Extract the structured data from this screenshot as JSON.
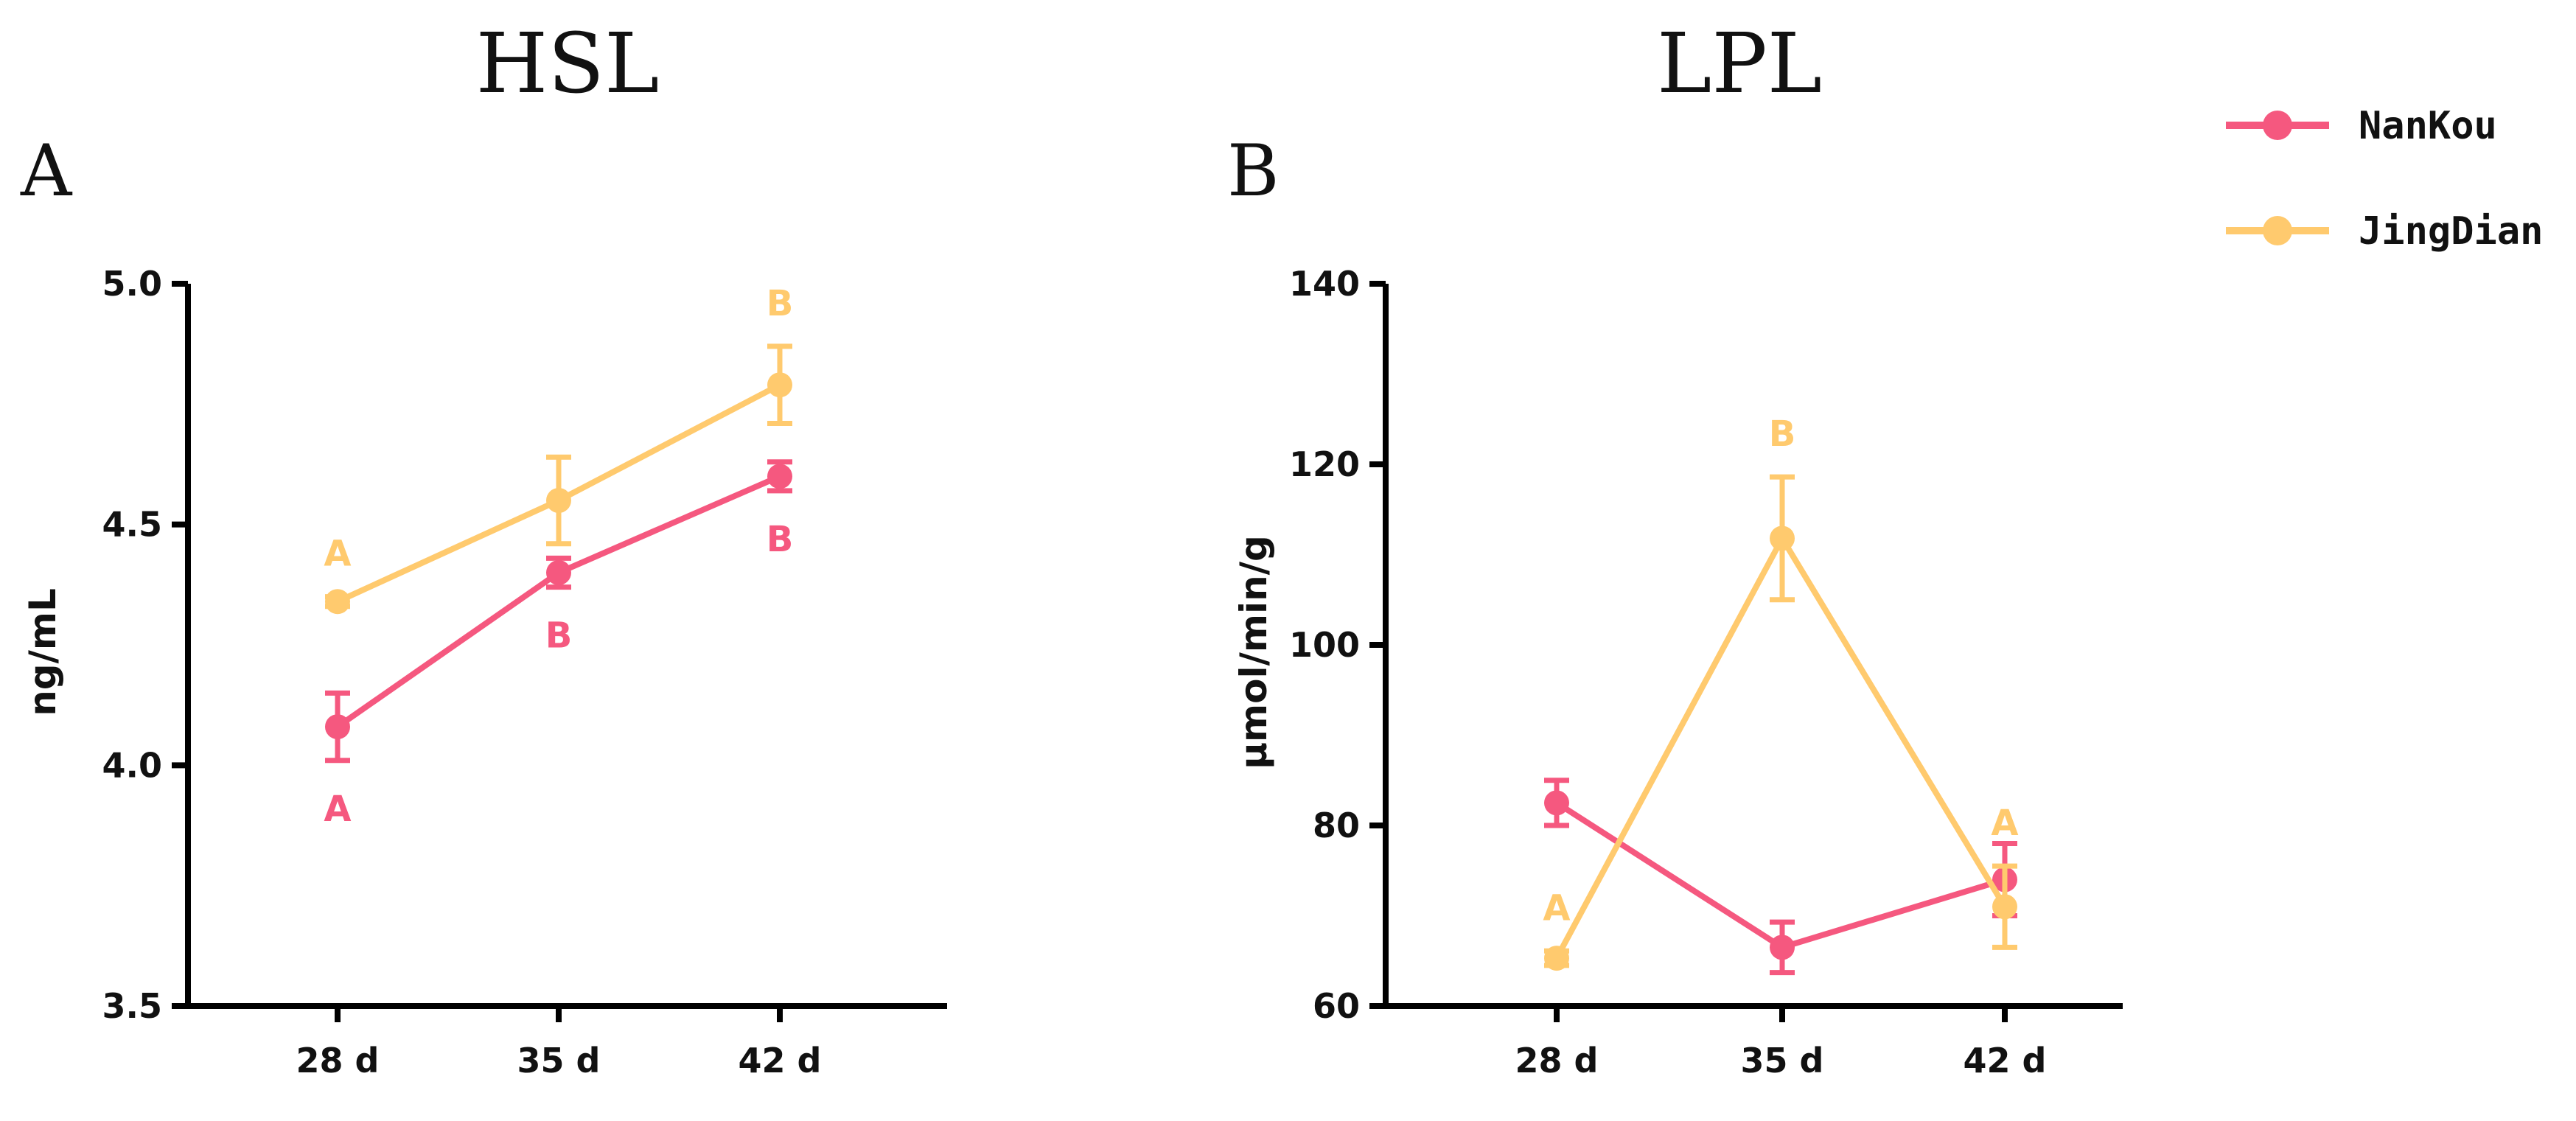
{
  "colors": {
    "NanKou": "#f5587f",
    "JingDian": "#ffca6e"
  },
  "legend": [
    {
      "name": "NanKou",
      "color_key": "NanKou"
    },
    {
      "name": "JingDian",
      "color_key": "JingDian"
    }
  ],
  "chart_data": [
    {
      "type": "line",
      "panel": "A",
      "title": "HSL",
      "ylabel": "ng/mL",
      "xlabel": "",
      "categories": [
        "28 d",
        "35 d",
        "42 d"
      ],
      "ylim": [
        3.5,
        5.0
      ],
      "yticks": [
        "3.5",
        "4.0",
        "4.5",
        "5.0"
      ],
      "ytick_values": [
        3.5,
        4.0,
        4.5,
        5.0
      ],
      "series": [
        {
          "name": "NanKou",
          "values": [
            4.08,
            4.4,
            4.6
          ],
          "errors": [
            0.07,
            0.03,
            0.03
          ],
          "letters": [
            "A",
            "B",
            "B"
          ],
          "letter_pos": [
            "below",
            "below",
            "below"
          ]
        },
        {
          "name": "JingDian",
          "values": [
            4.34,
            4.55,
            4.79
          ],
          "errors": [
            0.01,
            0.09,
            0.08
          ],
          "letters": [
            "A",
            "",
            "B"
          ],
          "letter_pos": [
            "above",
            "above",
            "above"
          ]
        }
      ]
    },
    {
      "type": "line",
      "panel": "B",
      "title": "LPL",
      "ylabel": "μmol/min/g",
      "xlabel": "",
      "categories": [
        "28 d",
        "35 d",
        "42 d"
      ],
      "ylim": [
        60,
        140
      ],
      "yticks": [
        "60",
        "80",
        "100",
        "120",
        "140"
      ],
      "ytick_values": [
        60,
        80,
        100,
        120,
        140
      ],
      "series": [
        {
          "name": "NanKou",
          "values": [
            82.5,
            66.5,
            74.0
          ],
          "errors": [
            2.5,
            2.8,
            4.0
          ],
          "letters": [
            "",
            "",
            ""
          ],
          "letter_pos": [
            "below",
            "below",
            "below"
          ]
        },
        {
          "name": "JingDian",
          "values": [
            65.3,
            111.8,
            71.0
          ],
          "errors": [
            0.8,
            6.8,
            4.5
          ],
          "letters": [
            "A",
            "B",
            "A"
          ],
          "letter_pos": [
            "above",
            "above",
            "above"
          ]
        }
      ]
    }
  ]
}
